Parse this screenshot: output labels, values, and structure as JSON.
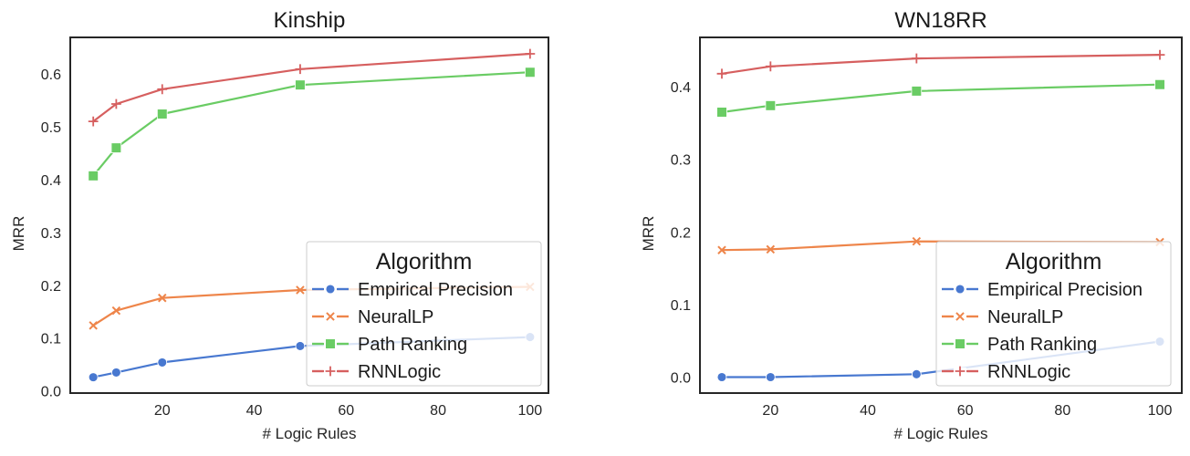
{
  "chart_data": [
    {
      "type": "line",
      "title": "Kinship",
      "xlabel": "# Logic Rules",
      "ylabel": "MRR",
      "x": [
        5,
        10,
        20,
        50,
        100
      ],
      "xticks": [
        20,
        40,
        60,
        80,
        100
      ],
      "yticks": [
        0.0,
        0.1,
        0.2,
        0.3,
        0.4,
        0.5,
        0.6
      ],
      "ytick_labels": [
        "0.0",
        "0.1",
        "0.2",
        "0.3",
        "0.4",
        "0.5",
        "0.6"
      ],
      "xlim": [
        0,
        104
      ],
      "ylim": [
        -0.004,
        0.669
      ],
      "grid": false,
      "legend": {
        "title": "Algorithm",
        "placement": "lower-right"
      },
      "series": [
        {
          "name": "Empirical Precision",
          "color": "#4878d0",
          "marker": "circle",
          "values": [
            0.026,
            0.035,
            0.054,
            0.085,
            0.102
          ]
        },
        {
          "name": "NeuralLP",
          "color": "#ee854a",
          "marker": "x",
          "values": [
            0.124,
            0.152,
            0.176,
            0.191,
            0.197
          ]
        },
        {
          "name": "Path Ranking",
          "color": "#6acc64",
          "marker": "square",
          "values": [
            0.407,
            0.46,
            0.524,
            0.579,
            0.603
          ]
        },
        {
          "name": "RNNLogic",
          "color": "#d65f5f",
          "marker": "plus",
          "values": [
            0.51,
            0.543,
            0.571,
            0.609,
            0.638
          ]
        }
      ]
    },
    {
      "type": "line",
      "title": "WN18RR",
      "xlabel": "# Logic Rules",
      "ylabel": "MRR",
      "x": [
        10,
        20,
        50,
        100
      ],
      "xticks": [
        20,
        40,
        60,
        80,
        100
      ],
      "yticks": [
        0.0,
        0.1,
        0.2,
        0.3,
        0.4
      ],
      "ytick_labels": [
        "0.0",
        "0.1",
        "0.2",
        "0.3",
        "0.4"
      ],
      "xlim": [
        5.5,
        104.5
      ],
      "ylim": [
        -0.022,
        0.468
      ],
      "grid": false,
      "legend": {
        "title": "Algorithm",
        "placement": "lower-right"
      },
      "series": [
        {
          "name": "Empirical Precision",
          "color": "#4878d0",
          "marker": "circle",
          "values": [
            0.0,
            0.0,
            0.004,
            0.049
          ]
        },
        {
          "name": "NeuralLP",
          "color": "#ee854a",
          "marker": "x",
          "values": [
            0.175,
            0.176,
            0.187,
            0.186
          ]
        },
        {
          "name": "Path Ranking",
          "color": "#6acc64",
          "marker": "square",
          "values": [
            0.365,
            0.374,
            0.394,
            0.403
          ]
        },
        {
          "name": "RNNLogic",
          "color": "#d65f5f",
          "marker": "plus",
          "values": [
            0.418,
            0.428,
            0.439,
            0.444
          ]
        }
      ]
    }
  ]
}
